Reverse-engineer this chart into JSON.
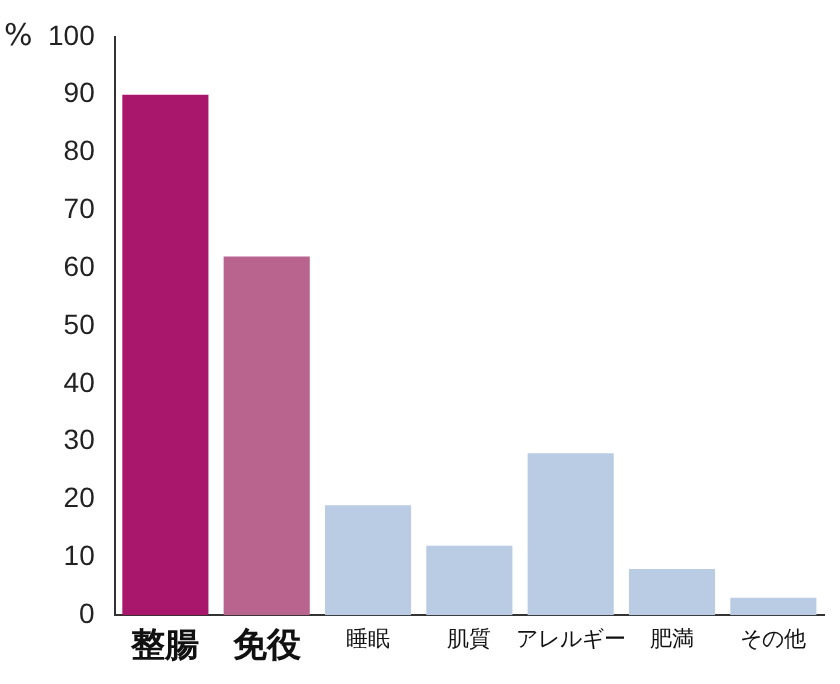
{
  "chart_data": {
    "type": "bar",
    "ylabel": "%",
    "categories": [
      "整腸",
      "免役",
      "睡眠",
      "肌質",
      "アレルギー",
      "肥満",
      "その他"
    ],
    "values": [
      90,
      62,
      19,
      12,
      28,
      8,
      3
    ],
    "colors": [
      "#a8176b",
      "#b8648f",
      "#b9cce3",
      "#b9cce3",
      "#b9cce3",
      "#b9cce3",
      "#b9cce3"
    ],
    "ylim": [
      0,
      100
    ],
    "yticks": [
      0,
      10,
      20,
      30,
      40,
      50,
      60,
      70,
      80,
      90,
      100
    ],
    "grid": false,
    "legend": false
  }
}
